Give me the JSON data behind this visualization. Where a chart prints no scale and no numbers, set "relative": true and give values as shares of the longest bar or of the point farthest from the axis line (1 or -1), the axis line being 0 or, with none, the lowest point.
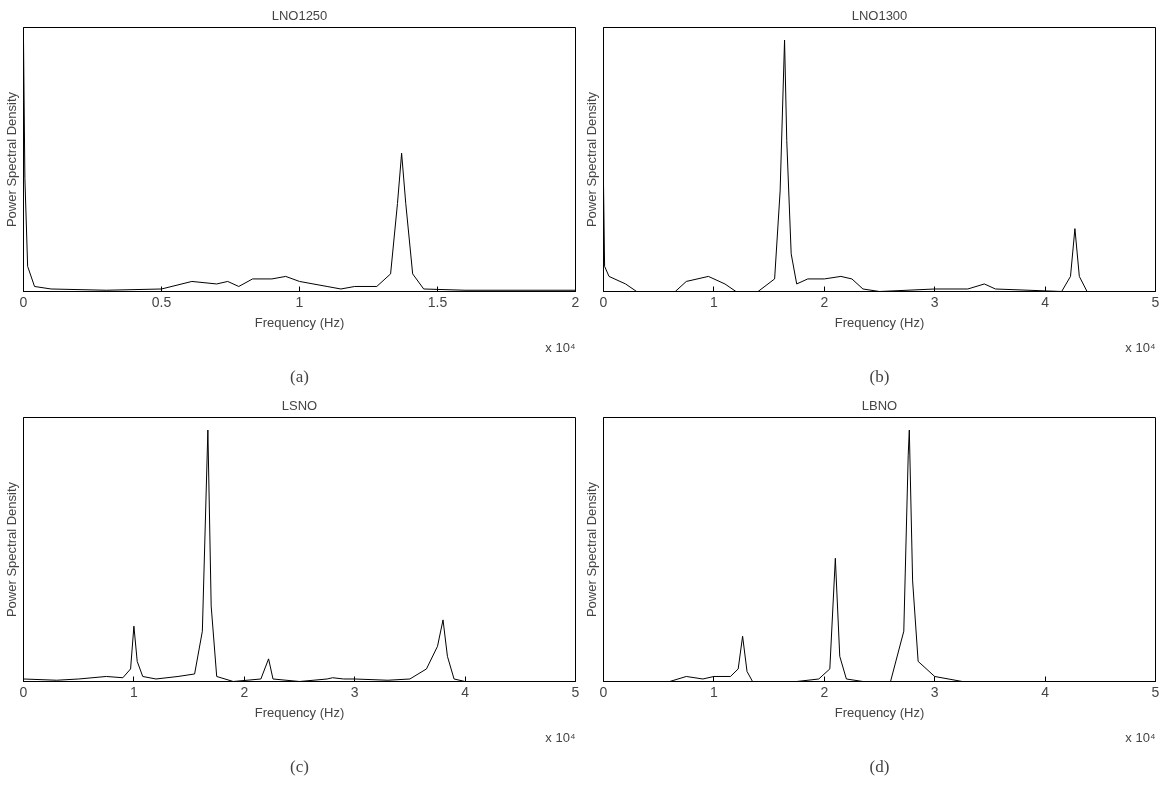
{
  "chart_data": [
    {
      "type": "line",
      "title": "LNO1250",
      "xlabel": "Frequency (Hz)",
      "ylabel": "Power Spectral Density",
      "relative": true,
      "grid": false,
      "xlim": [
        0,
        2
      ],
      "xticks": [
        0,
        0.5,
        1,
        1.5,
        2
      ],
      "annotations": [
        "x 10⁴",
        "(a)"
      ],
      "series": [
        {
          "color": "#000000",
          "x": [
            0,
            0.005,
            0.015,
            0.04,
            0.1,
            0.3,
            0.5,
            0.61,
            0.7,
            0.74,
            0.78,
            0.83,
            0.9,
            0.95,
            1.0,
            1.1,
            1.15,
            1.2,
            1.28,
            1.33,
            1.355,
            1.37,
            1.385,
            1.41,
            1.45,
            1.6,
            2.0
          ],
          "values": [
            1.0,
            0.45,
            0.1,
            0.02,
            0.01,
            0.005,
            0.01,
            0.04,
            0.03,
            0.04,
            0.02,
            0.05,
            0.05,
            0.06,
            0.04,
            0.02,
            0.01,
            0.02,
            0.02,
            0.07,
            0.35,
            0.55,
            0.35,
            0.07,
            0.01,
            0.005,
            0.005
          ]
        }
      ]
    },
    {
      "type": "line",
      "title": "LNO1300",
      "xlabel": "Frequency (Hz)",
      "ylabel": "Power Spectral Density",
      "relative": true,
      "grid": false,
      "xlim": [
        0,
        5
      ],
      "xticks": [
        0,
        1,
        2,
        3,
        4,
        5
      ],
      "annotations": [
        "x 10⁴",
        "(b)"
      ],
      "series": [
        {
          "color": "#000000",
          "x": [
            0,
            0.01,
            0.05,
            0.2,
            0.3,
            0.65,
            0.75,
            0.95,
            1.1,
            1.2,
            1.4,
            1.55,
            1.6,
            1.64,
            1.66,
            1.7,
            1.75,
            1.85,
            2.0,
            2.15,
            2.25,
            2.35,
            2.5,
            3.0,
            3.3,
            3.45,
            3.55,
            4.15,
            4.23,
            4.27,
            4.31,
            4.38,
            4.8
          ],
          "values": [
            0.43,
            0.1,
            0.06,
            0.03,
            0.0,
            0.0,
            0.04,
            0.06,
            0.03,
            0.0,
            0.0,
            0.05,
            0.4,
            1.0,
            0.6,
            0.15,
            0.03,
            0.05,
            0.05,
            0.06,
            0.05,
            0.01,
            0.0,
            0.01,
            0.01,
            0.03,
            0.01,
            0.0,
            0.06,
            0.25,
            0.06,
            0.0,
            0.0
          ]
        }
      ]
    },
    {
      "type": "line",
      "title": "LSNO",
      "xlabel": "Frequency (Hz)",
      "ylabel": "Power Spectral Density",
      "relative": true,
      "grid": false,
      "xlim": [
        0,
        5
      ],
      "xticks": [
        0,
        1,
        2,
        3,
        4,
        5
      ],
      "annotations": [
        "x 10⁴",
        "(c)"
      ],
      "series": [
        {
          "color": "#000000",
          "x": [
            0,
            0.3,
            0.5,
            0.75,
            0.9,
            0.97,
            1.0,
            1.03,
            1.08,
            1.2,
            1.4,
            1.55,
            1.62,
            1.67,
            1.7,
            1.75,
            1.9,
            2.15,
            2.22,
            2.26,
            2.5,
            2.75,
            2.8,
            2.9,
            3.0,
            3.3,
            3.5,
            3.65,
            3.75,
            3.8,
            3.84,
            3.9,
            4.0,
            4.8
          ],
          "values": [
            0.01,
            0.005,
            0.01,
            0.02,
            0.015,
            0.05,
            0.22,
            0.08,
            0.02,
            0.01,
            0.02,
            0.03,
            0.2,
            1.0,
            0.3,
            0.02,
            0.0,
            0.01,
            0.09,
            0.01,
            0.0,
            0.01,
            0.015,
            0.01,
            0.01,
            0.005,
            0.01,
            0.05,
            0.14,
            0.245,
            0.1,
            0.01,
            0.0,
            0.0
          ]
        }
      ]
    },
    {
      "type": "line",
      "title": "LBNO",
      "xlabel": "Frequency (Hz)",
      "ylabel": "Power Spectral Density",
      "relative": true,
      "grid": false,
      "xlim": [
        0,
        5
      ],
      "xticks": [
        0,
        1,
        2,
        3,
        4,
        5
      ],
      "annotations": [
        "x 10⁴",
        "(d)"
      ],
      "series": [
        {
          "color": "#000000",
          "x": [
            0,
            0.6,
            0.75,
            0.9,
            1.0,
            1.15,
            1.22,
            1.26,
            1.3,
            1.35,
            1.75,
            1.95,
            2.05,
            2.1,
            2.14,
            2.2,
            2.35,
            2.6,
            2.72,
            2.76,
            2.77,
            2.8,
            2.85,
            3.0,
            3.25,
            4.8
          ],
          "values": [
            0,
            0,
            0.02,
            0.01,
            0.02,
            0.02,
            0.05,
            0.18,
            0.04,
            0.0,
            0.0,
            0.01,
            0.05,
            0.49,
            0.1,
            0.01,
            0.0,
            0.0,
            0.2,
            0.9,
            1.0,
            0.4,
            0.08,
            0.02,
            0.0,
            0.0
          ]
        }
      ]
    }
  ]
}
